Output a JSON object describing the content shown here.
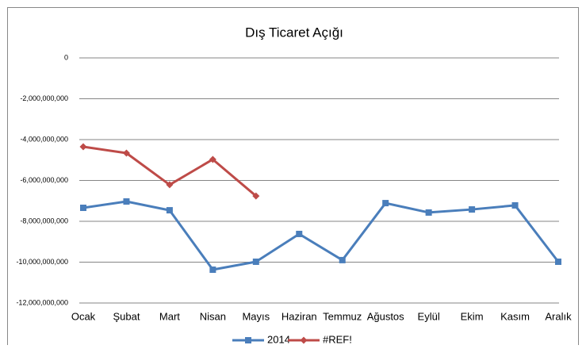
{
  "chart_data": {
    "type": "line",
    "title": "Dış Ticaret Açığı",
    "categories": [
      "Ocak",
      "Şubat",
      "Mart",
      "Nisan",
      "Mayıs",
      "Haziran",
      "Temmuz",
      "Ağustos",
      "Eylül",
      "Ekim",
      "Kasım",
      "Aralık"
    ],
    "series": [
      {
        "name": "2014",
        "color": "#4a7ebb",
        "marker": "square",
        "values": [
          -7340000000,
          -7030000000,
          -7460000000,
          -10370000000,
          -9980000000,
          -8620000000,
          -9900000000,
          -7110000000,
          -7570000000,
          -7420000000,
          -7220000000,
          -9980000000
        ]
      },
      {
        "name": "#REF!",
        "color": "#be4b48",
        "marker": "diamond",
        "values": [
          -4350000000,
          -4660000000,
          -6210000000,
          -4970000000,
          -6760000000,
          null,
          null,
          null,
          null,
          null,
          null,
          null
        ]
      }
    ],
    "ylim": [
      -12000000000,
      0
    ],
    "yticks": [
      0,
      {
        "value": -2000000000,
        "label": "-2,000,000,000"
      },
      {
        "value": -4000000000,
        "label": "-4,000,000,000"
      },
      {
        "value": -6000000000,
        "label": "-6,000,000,000"
      },
      {
        "value": -8000000000,
        "label": "-8,000,000,000"
      },
      {
        "value": -10000000000,
        "label": "-10,000,000,000"
      },
      {
        "value": -12000000000,
        "label": "-12,000,000,000"
      }
    ],
    "grid": true,
    "legend": "bottom"
  }
}
